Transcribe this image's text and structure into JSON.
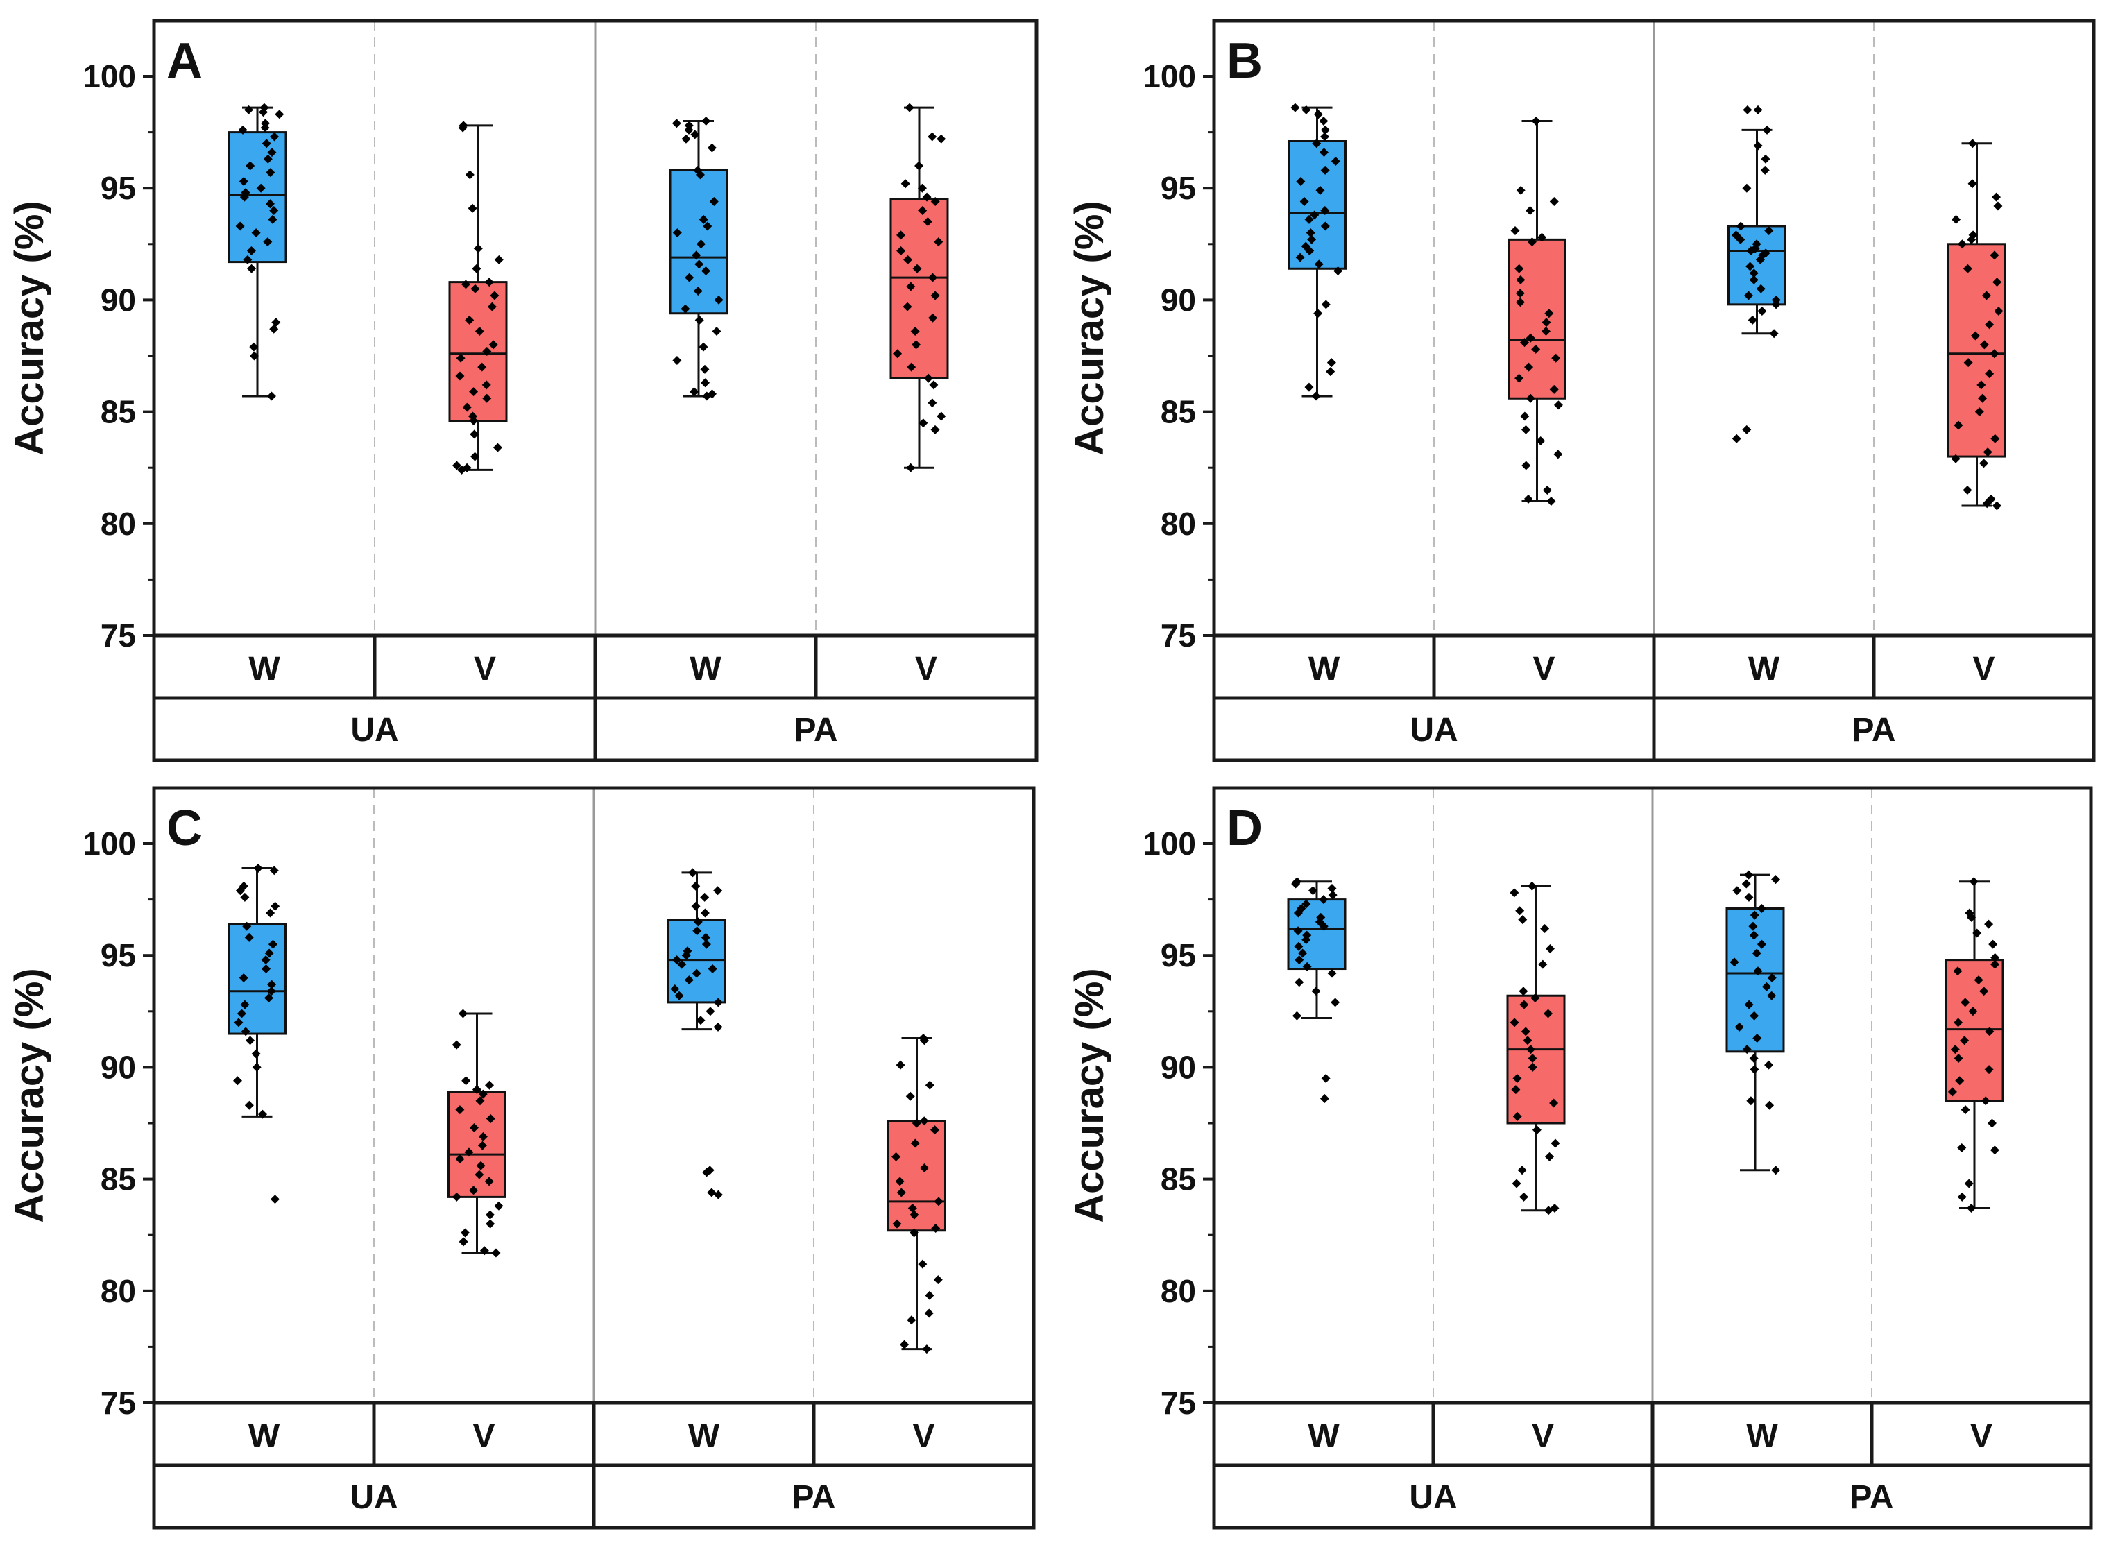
{
  "style": {
    "w_color": "#3ba7ee",
    "v_color": "#f66a6a",
    "axis_color": "#1a1a1a",
    "divider_color": "#bbbbbb",
    "point_color": "#000000"
  },
  "chart_data": [
    {
      "type": "box",
      "panel": "A",
      "ylabel": "Accuracy (%)",
      "ylim": [
        75,
        100
      ],
      "yticks": [
        75,
        80,
        85,
        90,
        95,
        100
      ],
      "groups": [
        "UA",
        "PA"
      ],
      "subgroups": [
        "W",
        "V"
      ],
      "boxes": [
        {
          "group": "UA",
          "sub": "W",
          "min": 85.7,
          "q1": 91.7,
          "median": 94.7,
          "q3": 97.5,
          "max": 98.6,
          "points": [
            98.6,
            98.5,
            98.4,
            98.3,
            97.9,
            97.7,
            97.6,
            97.3,
            97.0,
            96.6,
            96.3,
            96.0,
            95.7,
            95.3,
            95.0,
            94.8,
            94.6,
            94.3,
            94.0,
            93.6,
            93.3,
            93.0,
            92.6,
            92.2,
            91.8,
            91.4,
            89.0,
            88.7,
            87.9,
            87.5,
            85.7
          ]
        },
        {
          "group": "UA",
          "sub": "V",
          "min": 82.4,
          "q1": 84.6,
          "median": 87.6,
          "q3": 90.8,
          "max": 97.8,
          "points": [
            97.8,
            97.7,
            95.6,
            94.1,
            92.3,
            91.8,
            91.4,
            90.8,
            90.7,
            90.5,
            90.2,
            89.7,
            89.1,
            88.6,
            88.0,
            87.7,
            87.4,
            87.0,
            86.6,
            86.2,
            85.9,
            85.6,
            85.2,
            84.8,
            84.6,
            84.0,
            83.4,
            83.0,
            82.6,
            82.5,
            82.4
          ]
        },
        {
          "group": "PA",
          "sub": "W",
          "min": 85.7,
          "q1": 89.4,
          "median": 91.9,
          "q3": 95.8,
          "max": 98.0,
          "points": [
            98.0,
            97.9,
            97.8,
            97.6,
            97.4,
            97.2,
            96.8,
            95.8,
            95.6,
            94.4,
            93.6,
            93.3,
            93.0,
            92.5,
            92.0,
            91.6,
            91.3,
            91.0,
            90.4,
            90.0,
            89.6,
            89.1,
            88.6,
            87.9,
            87.3,
            86.9,
            86.3,
            85.9,
            85.8,
            85.7
          ]
        },
        {
          "group": "PA",
          "sub": "V",
          "min": 82.5,
          "q1": 86.5,
          "median": 91.0,
          "q3": 94.5,
          "max": 98.6,
          "points": [
            98.6,
            97.3,
            97.2,
            96.0,
            95.2,
            95.0,
            94.6,
            94.4,
            94.0,
            93.5,
            92.9,
            92.6,
            92.2,
            91.8,
            91.4,
            91.0,
            90.6,
            90.2,
            89.7,
            89.2,
            88.6,
            88.0,
            87.6,
            87.0,
            86.5,
            86.2,
            85.4,
            84.8,
            84.5,
            84.2,
            82.5
          ]
        }
      ]
    },
    {
      "type": "box",
      "panel": "B",
      "ylabel": "Accuracy (%)",
      "ylim": [
        75,
        100
      ],
      "yticks": [
        75,
        80,
        85,
        90,
        95,
        100
      ],
      "groups": [
        "UA",
        "PA"
      ],
      "subgroups": [
        "W",
        "V"
      ],
      "boxes": [
        {
          "group": "UA",
          "sub": "W",
          "min": 85.7,
          "q1": 91.4,
          "median": 93.9,
          "q3": 97.1,
          "max": 98.6,
          "points": [
            98.6,
            98.5,
            98.3,
            98.0,
            97.6,
            97.3,
            97.0,
            96.6,
            96.2,
            95.8,
            95.3,
            94.9,
            94.4,
            94.0,
            93.8,
            93.6,
            93.3,
            93.0,
            92.7,
            92.4,
            92.2,
            91.9,
            91.6,
            91.3,
            89.8,
            89.4,
            87.2,
            86.8,
            86.1,
            85.7
          ]
        },
        {
          "group": "UA",
          "sub": "V",
          "min": 81.0,
          "q1": 85.6,
          "median": 88.2,
          "q3": 92.7,
          "max": 98.0,
          "points": [
            98.0,
            94.9,
            94.4,
            94.0,
            93.1,
            92.8,
            92.6,
            91.4,
            90.9,
            90.3,
            89.9,
            89.4,
            89.0,
            88.6,
            88.3,
            88.1,
            87.8,
            87.4,
            87.0,
            86.5,
            86.0,
            85.6,
            85.3,
            84.8,
            84.2,
            83.7,
            83.1,
            82.6,
            81.5,
            81.1,
            81.0
          ]
        },
        {
          "group": "PA",
          "sub": "W",
          "min": 88.5,
          "q1": 89.8,
          "median": 92.2,
          "q3": 93.3,
          "max": 97.6,
          "points": [
            98.5,
            98.5,
            97.6,
            96.9,
            96.3,
            95.8,
            95.0,
            93.3,
            93.1,
            92.9,
            92.7,
            92.5,
            92.3,
            92.2,
            92.1,
            92.0,
            91.8,
            91.5,
            91.2,
            90.9,
            90.5,
            90.2,
            90.0,
            89.8,
            89.5,
            89.1,
            88.5,
            84.2,
            83.8
          ]
        },
        {
          "group": "PA",
          "sub": "V",
          "min": 80.8,
          "q1": 83.0,
          "median": 87.6,
          "q3": 92.5,
          "max": 97.0,
          "points": [
            97.0,
            95.2,
            94.6,
            94.2,
            93.6,
            92.9,
            92.7,
            92.5,
            92.0,
            91.4,
            90.8,
            90.2,
            89.5,
            88.9,
            88.4,
            88.0,
            87.6,
            87.2,
            86.7,
            86.2,
            85.6,
            85.0,
            84.4,
            83.8,
            83.2,
            82.9,
            82.7,
            81.5,
            81.1,
            80.9,
            80.8
          ]
        }
      ]
    },
    {
      "type": "box",
      "panel": "C",
      "ylabel": "Accuracy (%)",
      "ylim": [
        75,
        100
      ],
      "yticks": [
        75,
        80,
        85,
        90,
        95,
        100
      ],
      "groups": [
        "UA",
        "PA"
      ],
      "subgroups": [
        "W",
        "V"
      ],
      "boxes": [
        {
          "group": "UA",
          "sub": "W",
          "min": 87.8,
          "q1": 91.5,
          "median": 93.4,
          "q3": 96.4,
          "max": 98.9,
          "points": [
            98.9,
            98.8,
            98.1,
            97.9,
            97.6,
            97.2,
            96.9,
            96.3,
            95.8,
            95.5,
            95.1,
            94.8,
            94.4,
            94.0,
            93.7,
            93.4,
            93.1,
            92.8,
            92.4,
            92.0,
            91.6,
            91.2,
            90.6,
            90.0,
            89.4,
            88.3,
            87.9,
            84.1
          ]
        },
        {
          "group": "UA",
          "sub": "V",
          "min": 81.7,
          "q1": 84.2,
          "median": 86.1,
          "q3": 88.9,
          "max": 92.4,
          "points": [
            92.4,
            91.0,
            89.4,
            89.2,
            89.0,
            88.8,
            88.5,
            88.1,
            87.7,
            87.3,
            86.9,
            86.5,
            86.2,
            85.9,
            85.6,
            85.2,
            84.9,
            84.5,
            84.2,
            83.8,
            83.4,
            83.0,
            82.6,
            82.2,
            81.8,
            81.7
          ]
        },
        {
          "group": "PA",
          "sub": "W",
          "min": 91.7,
          "q1": 92.9,
          "median": 94.8,
          "q3": 96.6,
          "max": 98.7,
          "points": [
            98.7,
            98.1,
            97.9,
            97.6,
            97.2,
            96.9,
            96.5,
            96.1,
            95.8,
            95.5,
            95.2,
            95.0,
            94.8,
            94.6,
            94.4,
            94.2,
            93.9,
            93.5,
            93.2,
            92.9,
            92.5,
            92.1,
            91.8,
            85.4,
            85.3,
            84.4,
            84.3
          ]
        },
        {
          "group": "PA",
          "sub": "V",
          "min": 77.4,
          "q1": 82.7,
          "median": 84.0,
          "q3": 87.6,
          "max": 91.3,
          "points": [
            91.3,
            91.2,
            90.1,
            89.2,
            88.7,
            87.6,
            87.5,
            87.2,
            86.6,
            86.0,
            85.5,
            84.9,
            84.4,
            84.0,
            83.7,
            83.4,
            83.0,
            82.8,
            82.6,
            81.2,
            80.5,
            79.8,
            79.0,
            78.7,
            77.6,
            77.4
          ]
        }
      ]
    },
    {
      "type": "box",
      "panel": "D",
      "ylabel": "Accuracy (%)",
      "ylim": [
        75,
        100
      ],
      "yticks": [
        75,
        80,
        85,
        90,
        95,
        100
      ],
      "groups": [
        "UA",
        "PA"
      ],
      "subgroups": [
        "W",
        "V"
      ],
      "boxes": [
        {
          "group": "UA",
          "sub": "W",
          "min": 92.2,
          "q1": 94.4,
          "median": 96.2,
          "q3": 97.5,
          "max": 98.3,
          "points": [
            98.3,
            98.2,
            98.0,
            97.9,
            97.7,
            97.5,
            97.3,
            97.1,
            96.9,
            96.7,
            96.5,
            96.3,
            96.1,
            95.9,
            95.7,
            95.4,
            95.1,
            94.8,
            94.5,
            94.2,
            93.8,
            93.4,
            92.9,
            92.3,
            89.5,
            88.6
          ]
        },
        {
          "group": "UA",
          "sub": "V",
          "min": 83.6,
          "q1": 87.5,
          "median": 90.8,
          "q3": 93.2,
          "max": 98.1,
          "points": [
            98.1,
            97.8,
            97.0,
            96.6,
            96.2,
            95.3,
            94.6,
            93.4,
            93.1,
            92.8,
            92.4,
            92.0,
            91.6,
            91.2,
            90.8,
            90.4,
            90.0,
            89.5,
            89.0,
            88.4,
            87.8,
            87.2,
            86.6,
            86.0,
            85.4,
            84.8,
            84.2,
            83.7,
            83.6
          ]
        },
        {
          "group": "PA",
          "sub": "W",
          "min": 85.4,
          "q1": 90.7,
          "median": 94.2,
          "q3": 97.1,
          "max": 98.6,
          "points": [
            98.6,
            98.4,
            98.2,
            97.9,
            97.6,
            97.1,
            96.8,
            96.3,
            95.9,
            95.5,
            95.1,
            94.7,
            94.3,
            94.0,
            93.6,
            93.2,
            92.8,
            92.3,
            91.8,
            91.3,
            90.8,
            90.4,
            90.1,
            89.9,
            88.5,
            88.3,
            85.4
          ]
        },
        {
          "group": "PA",
          "sub": "V",
          "min": 83.7,
          "q1": 88.5,
          "median": 91.7,
          "q3": 94.8,
          "max": 98.3,
          "points": [
            98.3,
            96.9,
            96.7,
            96.4,
            96.0,
            95.5,
            94.9,
            94.6,
            94.3,
            93.9,
            93.4,
            92.9,
            92.5,
            92.0,
            91.6,
            91.2,
            90.8,
            90.4,
            89.9,
            89.4,
            88.9,
            88.5,
            88.1,
            87.5,
            86.4,
            86.3,
            84.8,
            84.2,
            83.7
          ]
        }
      ]
    }
  ]
}
